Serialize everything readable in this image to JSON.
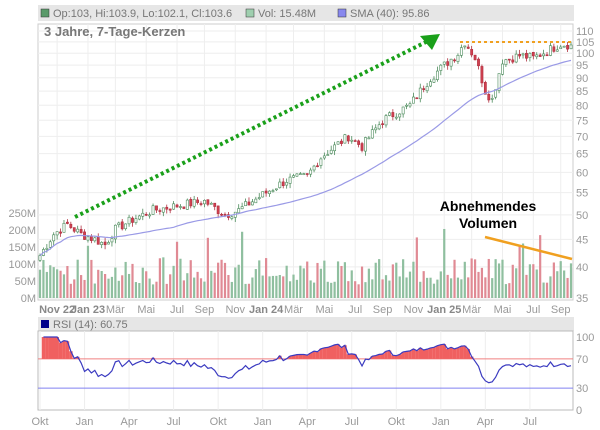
{
  "header": {
    "ohlc": "Op:103, Hi:103.9, Lo:102.1, Cl:103.6",
    "volume": "Vol: 15.48M",
    "sma": "SMA (40): 95.86",
    "title": "3 Jahre, 7-Tage-Kerzen"
  },
  "annotation": {
    "line1": "Abnehmendes",
    "line2": "Volumen"
  },
  "rsi": {
    "label": "RSI (14): 60.75"
  },
  "colors": {
    "up": "#8fbf9f",
    "down": "#e08a94",
    "sma": "#9a9ae6",
    "rsi": "#3a3ac0",
    "green_arrow": "#1aa01a",
    "orange": "#f0a020"
  },
  "chart_data": {
    "type": "candlestick",
    "title": "3 Jahre, 7-Tage-Kerzen",
    "price_ticks": [
      35,
      40,
      45,
      50,
      55,
      60,
      65,
      70,
      75,
      80,
      85,
      90,
      95,
      100,
      105,
      110
    ],
    "volume_ticks": [
      "0M",
      "50M",
      "100M",
      "150M",
      "200M",
      "250M"
    ],
    "volume_tick_values": [
      0,
      50,
      100,
      150,
      200,
      250
    ],
    "x_ticks": [
      {
        "l": "Nov 22",
        "b": true,
        "w": 5
      },
      {
        "l": "Jan 23",
        "b": true,
        "w": 14
      },
      {
        "l": "Mär",
        "w": 22
      },
      {
        "l": "Mai",
        "w": 31
      },
      {
        "l": "Jul",
        "w": 40
      },
      {
        "l": "Sep",
        "w": 48
      },
      {
        "l": "Nov",
        "w": 57
      },
      {
        "l": "Jan 24",
        "b": true,
        "w": 66
      },
      {
        "l": "Mär",
        "w": 74
      },
      {
        "l": "Mai",
        "w": 83
      },
      {
        "l": "Jul",
        "w": 92
      },
      {
        "l": "Sep",
        "w": 100
      },
      {
        "l": "Nov",
        "w": 109
      },
      {
        "l": "Jan 25",
        "b": true,
        "w": 118
      },
      {
        "l": "Mär",
        "w": 126
      },
      {
        "l": "Mai",
        "w": 135
      },
      {
        "l": "Jul",
        "w": 144
      },
      {
        "l": "Sep",
        "w": 152
      }
    ],
    "rsi_x_ticks": [
      {
        "l": "Okt",
        "w": 0
      },
      {
        "l": "Jan",
        "w": 13
      },
      {
        "l": "Apr",
        "w": 26
      },
      {
        "l": "Jul",
        "w": 39
      },
      {
        "l": "Okt",
        "w": 52
      },
      {
        "l": "Jan",
        "w": 65
      },
      {
        "l": "Apr",
        "w": 78
      },
      {
        "l": "Jul",
        "w": 91
      },
      {
        "l": "Okt",
        "w": 104
      },
      {
        "l": "Jan",
        "w": 117
      },
      {
        "l": "Apr",
        "w": 130
      },
      {
        "l": "Jul",
        "w": 143
      }
    ],
    "rsi_ticks": [
      0,
      30,
      70,
      100
    ],
    "weekly_close_anchors": [
      [
        0,
        42
      ],
      [
        4,
        46
      ],
      [
        8,
        48
      ],
      [
        12,
        46
      ],
      [
        16,
        45
      ],
      [
        19,
        44
      ],
      [
        22,
        47
      ],
      [
        27,
        49
      ],
      [
        33,
        51
      ],
      [
        40,
        52
      ],
      [
        48,
        53
      ],
      [
        54,
        50
      ],
      [
        58,
        51
      ],
      [
        64,
        54
      ],
      [
        72,
        58
      ],
      [
        78,
        59
      ],
      [
        82,
        64
      ],
      [
        90,
        70
      ],
      [
        94,
        67
      ],
      [
        100,
        75
      ],
      [
        108,
        80
      ],
      [
        114,
        90
      ],
      [
        118,
        95
      ],
      [
        122,
        100
      ],
      [
        124,
        105
      ],
      [
        127,
        98
      ],
      [
        130,
        85
      ],
      [
        132,
        82
      ],
      [
        135,
        97
      ],
      [
        140,
        99
      ],
      [
        144,
        98
      ],
      [
        148,
        101
      ],
      [
        152,
        104
      ],
      [
        155,
        103.6
      ]
    ],
    "weeks": 156,
    "sma_period": 40,
    "rsi_period": 14,
    "last_rsi": 60.75,
    "last_sma": 95.86
  }
}
